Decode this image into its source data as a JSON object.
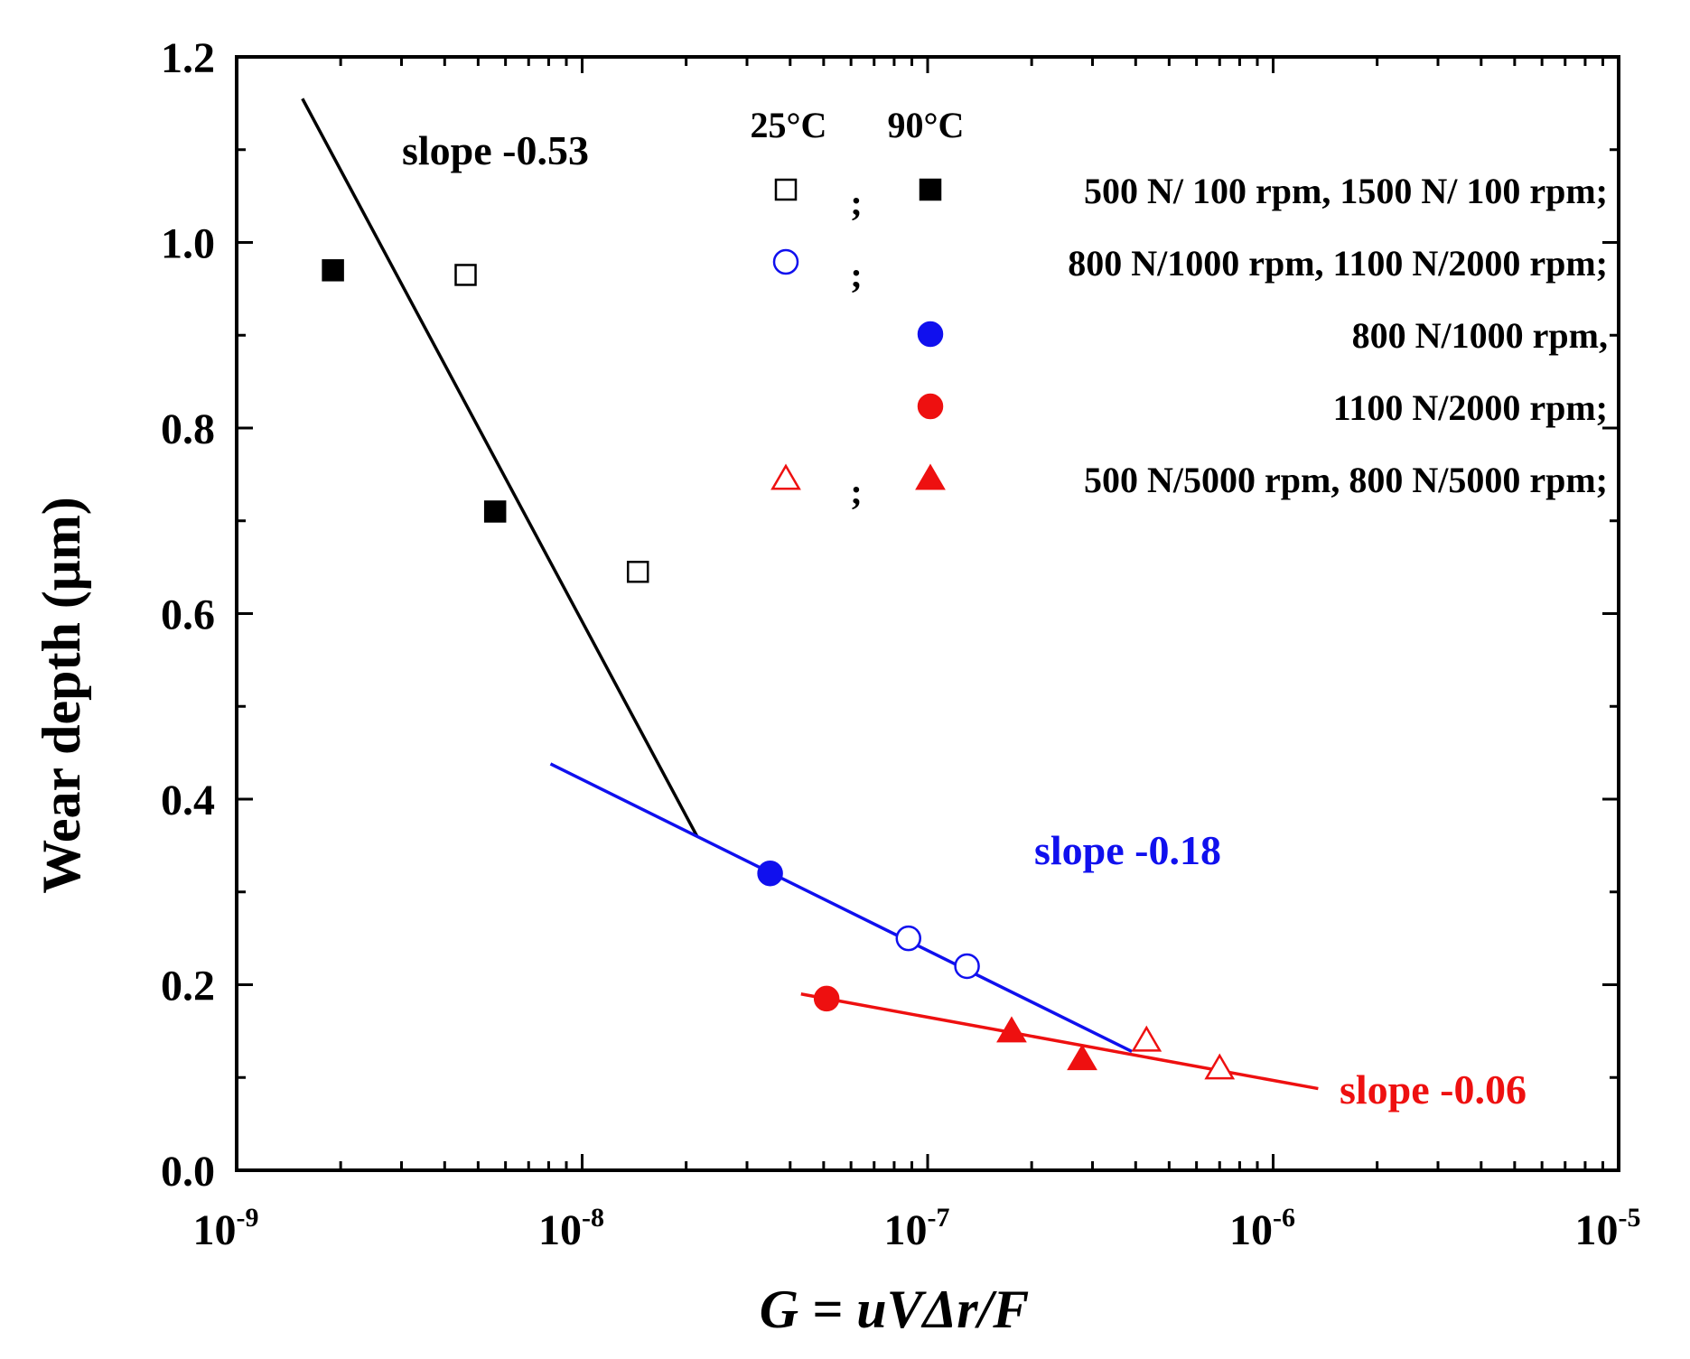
{
  "chart_data": {
    "type": "scatter",
    "xscale": "log",
    "xlim_exp": [
      -9,
      -5
    ],
    "ylim": [
      0.0,
      1.2
    ],
    "x_ticks": [
      {
        "exp": -9,
        "base": "10",
        "sup": "-9"
      },
      {
        "exp": -8,
        "base": "10",
        "sup": "-8"
      },
      {
        "exp": -7,
        "base": "10",
        "sup": "-7"
      },
      {
        "exp": -6,
        "base": "10",
        "sup": "-6"
      },
      {
        "exp": -5,
        "base": "10",
        "sup": "-5"
      }
    ],
    "y_ticks": [
      {
        "value": 0.0,
        "label": "0.0"
      },
      {
        "value": 0.2,
        "label": "0.2"
      },
      {
        "value": 0.4,
        "label": "0.4"
      },
      {
        "value": 0.6,
        "label": "0.6"
      },
      {
        "value": 0.8,
        "label": "0.8"
      },
      {
        "value": 1.0,
        "label": "1.0"
      },
      {
        "value": 1.2,
        "label": "1.2"
      }
    ],
    "xlabel": "G = uVΔr/F",
    "ylabel": "Wear depth (μm)",
    "colors": {
      "black": "#000000",
      "blue": "#1010ee",
      "red": "#ee1010"
    },
    "series": [
      {
        "name": "25°C 500 N/ 100 rpm, 1500 N/ 100 rpm",
        "marker": "square-open",
        "color": "black",
        "points": [
          {
            "x": 4.6e-09,
            "y": 0.965
          },
          {
            "x": 1.45e-08,
            "y": 0.645
          }
        ]
      },
      {
        "name": "90°C 500 N/ 100 rpm, 1500 N/ 100 rpm",
        "marker": "square-filled",
        "color": "black",
        "points": [
          {
            "x": 1.9e-09,
            "y": 0.97
          },
          {
            "x": 5.6e-09,
            "y": 0.71
          }
        ]
      },
      {
        "name": "25°C 800 N/1000 rpm, 1100 N/2000 rpm",
        "marker": "circle-open",
        "color": "blue",
        "points": [
          {
            "x": 8.8e-08,
            "y": 0.25
          },
          {
            "x": 1.3e-07,
            "y": 0.22
          }
        ]
      },
      {
        "name": "90°C 800 N/1000 rpm",
        "marker": "circle-filled",
        "color": "blue",
        "points": [
          {
            "x": 3.5e-08,
            "y": 0.32
          }
        ]
      },
      {
        "name": "90°C 1100 N/2000 rpm",
        "marker": "circle-filled",
        "color": "red",
        "points": [
          {
            "x": 5.1e-08,
            "y": 0.185
          }
        ]
      },
      {
        "name": "25°C 500 N/5000 rpm, 800 N/5000 rpm",
        "marker": "triangle-open",
        "color": "red",
        "points": [
          {
            "x": 4.3e-07,
            "y": 0.14
          },
          {
            "x": 7e-07,
            "y": 0.11
          }
        ]
      },
      {
        "name": "90°C 500 N/5000 rpm, 800 N/5000 rpm",
        "marker": "triangle-filled",
        "color": "red",
        "points": [
          {
            "x": 1.75e-07,
            "y": 0.15
          },
          {
            "x": 2.8e-07,
            "y": 0.12
          }
        ]
      }
    ],
    "fit_lines": [
      {
        "color": "black",
        "label": "slope -0.53",
        "points": [
          {
            "x": 1.55e-09,
            "y": 1.155
          },
          {
            "x": 2.15e-08,
            "y": 0.36
          }
        ]
      },
      {
        "color": "blue",
        "label": "slope -0.18",
        "points": [
          {
            "x": 8.1e-09,
            "y": 0.438
          },
          {
            "x": 3.9e-07,
            "y": 0.128
          }
        ]
      },
      {
        "color": "red",
        "label": "slope -0.06",
        "points": [
          {
            "x": 4.3e-08,
            "y": 0.19
          },
          {
            "x": 1.35e-06,
            "y": 0.088
          }
        ]
      }
    ],
    "legend": {
      "header_25": "25°C",
      "header_90": "90°C",
      "rows": [
        {
          "m25": "square-open",
          "c25": "black",
          "semi": ";",
          "m90": "square-filled",
          "c90": "black",
          "text": "500 N/  100 rpm, 1500 N/  100 rpm;"
        },
        {
          "m25": "circle-open",
          "c25": "blue",
          "semi": ";",
          "m90": "",
          "c90": "",
          "text": "800 N/1000 rpm, 1100 N/2000 rpm;"
        },
        {
          "m25": "",
          "c25": "",
          "semi": "",
          "m90": "circle-filled",
          "c90": "blue",
          "text": "800 N/1000 rpm,"
        },
        {
          "m25": "",
          "c25": "",
          "semi": "",
          "m90": "circle-filled",
          "c90": "red",
          "text": "1100 N/2000 rpm;"
        },
        {
          "m25": "triangle-open",
          "c25": "red",
          "semi": ";",
          "m90": "triangle-filled",
          "c90": "red",
          "text": "500 N/5000 rpm,   800 N/5000 rpm;"
        }
      ]
    }
  }
}
